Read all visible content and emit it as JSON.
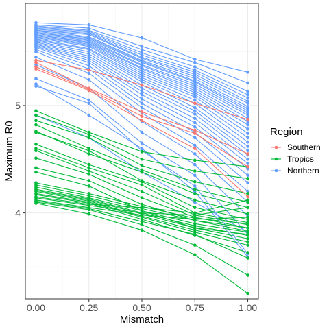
{
  "chart_data": {
    "type": "line",
    "xlabel": "Mismatch",
    "ylabel": "Maximum R0",
    "x": [
      0,
      0.25,
      0.5,
      0.75,
      1
    ],
    "x_ticks": [
      "0.00",
      "0.25",
      "0.50",
      "0.75",
      "1.00"
    ],
    "y_ticks": [
      4,
      5
    ],
    "xlim": [
      -0.05,
      1.05
    ],
    "ylim": [
      3.2,
      5.95
    ],
    "grid": true,
    "legend": {
      "title": "Region",
      "position": "right",
      "entries": [
        {
          "name": "Southern",
          "color": "#F8766D"
        },
        {
          "name": "Tropics",
          "color": "#00BA38"
        },
        {
          "name": "Northern",
          "color": "#619CFF"
        }
      ]
    },
    "series": [
      {
        "group": "Southern",
        "values": [
          5.42,
          5.33,
          5.19,
          5.02,
          4.87
        ]
      },
      {
        "group": "Southern",
        "values": [
          5.4,
          5.16,
          4.94,
          4.77,
          4.55
        ]
      },
      {
        "group": "Southern",
        "values": [
          5.36,
          5.15,
          4.9,
          4.74,
          4.43
        ]
      },
      {
        "group": "Southern",
        "values": [
          5.34,
          5.14,
          4.86,
          4.6,
          4.15
        ]
      },
      {
        "group": "Northern",
        "values": [
          5.77,
          5.75,
          5.63,
          5.43,
          5.31
        ]
      },
      {
        "group": "Northern",
        "values": [
          5.75,
          5.72,
          5.55,
          5.4,
          5.21
        ]
      },
      {
        "group": "Northern",
        "values": [
          5.74,
          5.7,
          5.52,
          5.36,
          5.13
        ]
      },
      {
        "group": "Northern",
        "values": [
          5.73,
          5.69,
          5.49,
          5.33,
          5.1
        ]
      },
      {
        "group": "Northern",
        "values": [
          5.72,
          5.68,
          5.47,
          5.31,
          5.07
        ]
      },
      {
        "group": "Northern",
        "values": [
          5.71,
          5.67,
          5.45,
          5.29,
          5.04
        ]
      },
      {
        "group": "Northern",
        "values": [
          5.7,
          5.66,
          5.44,
          5.27,
          5.02
        ]
      },
      {
        "group": "Northern",
        "values": [
          5.7,
          5.64,
          5.42,
          5.25,
          4.99
        ]
      },
      {
        "group": "Northern",
        "values": [
          5.69,
          5.63,
          5.41,
          5.23,
          4.97
        ]
      },
      {
        "group": "Northern",
        "values": [
          5.68,
          5.62,
          5.4,
          5.22,
          4.95
        ]
      },
      {
        "group": "Northern",
        "values": [
          5.68,
          5.61,
          5.38,
          5.2,
          4.93
        ]
      },
      {
        "group": "Northern",
        "values": [
          5.67,
          5.6,
          5.37,
          5.18,
          4.91
        ]
      },
      {
        "group": "Northern",
        "values": [
          5.66,
          5.59,
          5.35,
          5.16,
          4.88
        ]
      },
      {
        "group": "Northern",
        "values": [
          5.66,
          5.58,
          5.34,
          5.14,
          4.85
        ]
      },
      {
        "group": "Northern",
        "values": [
          5.65,
          5.57,
          5.32,
          5.12,
          4.82
        ]
      },
      {
        "group": "Northern",
        "values": [
          5.64,
          5.56,
          5.3,
          5.1,
          4.78
        ]
      },
      {
        "group": "Northern",
        "values": [
          5.63,
          5.55,
          5.28,
          5.08,
          4.74
        ]
      },
      {
        "group": "Northern",
        "values": [
          5.62,
          5.53,
          5.26,
          5.05,
          4.7
        ]
      },
      {
        "group": "Northern",
        "values": [
          5.61,
          5.52,
          5.24,
          5.02,
          4.66
        ]
      },
      {
        "group": "Northern",
        "values": [
          5.6,
          5.5,
          5.22,
          4.98,
          4.62
        ]
      },
      {
        "group": "Northern",
        "values": [
          5.59,
          5.48,
          5.19,
          4.95,
          4.58
        ]
      },
      {
        "group": "Northern",
        "values": [
          5.58,
          5.46,
          5.16,
          4.92,
          4.54
        ]
      },
      {
        "group": "Northern",
        "values": [
          5.57,
          5.44,
          5.13,
          4.88,
          4.5
        ]
      },
      {
        "group": "Northern",
        "values": [
          5.56,
          5.42,
          5.1,
          4.84,
          4.46
        ]
      },
      {
        "group": "Northern",
        "values": [
          5.55,
          5.4,
          5.06,
          4.8,
          4.41
        ]
      },
      {
        "group": "Northern",
        "values": [
          5.54,
          5.37,
          5.02,
          4.75,
          4.35
        ]
      },
      {
        "group": "Northern",
        "values": [
          5.52,
          5.34,
          4.98,
          4.7,
          4.28
        ]
      },
      {
        "group": "Northern",
        "values": [
          5.5,
          5.3,
          4.93,
          4.63,
          4.2
        ]
      },
      {
        "group": "Northern",
        "values": [
          5.45,
          5.24,
          4.85,
          4.55,
          4.1
        ]
      },
      {
        "group": "Northern",
        "values": [
          5.38,
          5.16,
          4.75,
          4.45,
          3.97
        ]
      },
      {
        "group": "Northern",
        "values": [
          5.25,
          5.05,
          4.65,
          4.35,
          3.8
        ]
      },
      {
        "group": "Northern",
        "values": [
          5.18,
          5.02,
          4.58,
          4.25,
          3.62
        ]
      },
      {
        "group": "Northern",
        "values": [
          5.2,
          4.91,
          4.6,
          4.2,
          3.59
        ]
      },
      {
        "group": "Northern",
        "values": [
          4.91,
          4.7,
          4.38,
          4.1,
          3.82
        ]
      },
      {
        "group": "Tropics",
        "values": [
          4.95,
          4.75,
          4.57,
          4.49,
          4.43
        ]
      },
      {
        "group": "Tropics",
        "values": [
          4.91,
          4.73,
          4.5,
          4.39,
          4.32
        ]
      },
      {
        "group": "Tropics",
        "values": [
          4.86,
          4.7,
          4.44,
          4.29,
          4.18
        ]
      },
      {
        "group": "Tropics",
        "values": [
          4.82,
          4.6,
          4.4,
          4.22,
          4.1
        ]
      },
      {
        "group": "Tropics",
        "values": [
          4.76,
          4.55,
          4.38,
          4.18,
          4.05
        ]
      },
      {
        "group": "Tropics",
        "values": [
          4.75,
          4.58,
          4.3,
          4.12,
          3.99
        ]
      },
      {
        "group": "Tropics",
        "values": [
          4.64,
          4.45,
          4.29,
          4.05,
          3.94
        ]
      },
      {
        "group": "Tropics",
        "values": [
          4.6,
          4.42,
          4.26,
          4.0,
          3.91
        ]
      },
      {
        "group": "Tropics",
        "values": [
          4.58,
          4.39,
          4.2,
          3.98,
          3.89
        ]
      },
      {
        "group": "Tropics",
        "values": [
          4.51,
          4.36,
          4.14,
          3.96,
          3.86
        ]
      },
      {
        "group": "Tropics",
        "values": [
          4.42,
          4.3,
          4.08,
          3.93,
          3.83
        ]
      },
      {
        "group": "Tropics",
        "values": [
          4.38,
          4.25,
          4.02,
          3.86,
          3.8
        ]
      },
      {
        "group": "Tropics",
        "values": [
          4.28,
          4.18,
          4.06,
          3.95,
          3.9
        ]
      },
      {
        "group": "Tropics",
        "values": [
          4.26,
          4.16,
          4.04,
          3.93,
          3.86
        ]
      },
      {
        "group": "Tropics",
        "values": [
          4.24,
          4.14,
          4.02,
          3.9,
          3.82
        ]
      },
      {
        "group": "Tropics",
        "values": [
          4.22,
          4.13,
          4.0,
          3.88,
          3.79
        ]
      },
      {
        "group": "Tropics",
        "values": [
          4.21,
          4.12,
          3.99,
          3.86,
          3.76
        ]
      },
      {
        "group": "Tropics",
        "values": [
          4.2,
          4.11,
          3.97,
          3.84,
          3.73
        ]
      },
      {
        "group": "Tropics",
        "values": [
          4.18,
          4.1,
          3.96,
          3.82,
          3.7
        ]
      },
      {
        "group": "Tropics",
        "values": [
          4.17,
          4.09,
          3.94,
          3.79,
          3.63
        ]
      },
      {
        "group": "Tropics",
        "values": [
          4.15,
          4.08,
          4.05,
          4.0,
          4.12
        ]
      },
      {
        "group": "Tropics",
        "values": [
          4.14,
          4.07,
          4.0,
          3.98,
          4.05
        ]
      },
      {
        "group": "Tropics",
        "values": [
          4.12,
          4.05,
          3.98,
          3.94,
          3.96
        ]
      },
      {
        "group": "Tropics",
        "values": [
          4.11,
          4.04,
          3.92,
          3.8,
          3.58
        ]
      },
      {
        "group": "Tropics",
        "values": [
          4.1,
          4.03,
          3.89,
          3.7,
          3.42
        ]
      },
      {
        "group": "Tropics",
        "values": [
          4.09,
          3.99,
          3.84,
          3.61,
          3.25
        ]
      }
    ]
  }
}
